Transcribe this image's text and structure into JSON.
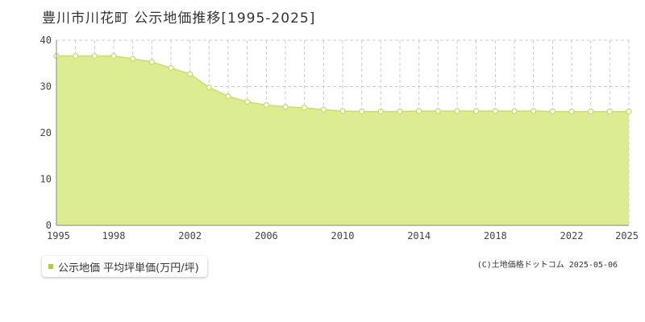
{
  "chart_data": {
    "type": "area",
    "title": "豊川市川花町 公示地価推移[1995-2025]",
    "xlabel": "",
    "ylabel": "",
    "x": [
      1995,
      1996,
      1997,
      1998,
      1999,
      2000,
      2001,
      2002,
      2003,
      2004,
      2005,
      2006,
      2007,
      2008,
      2009,
      2010,
      2011,
      2012,
      2013,
      2014,
      2015,
      2016,
      2017,
      2018,
      2019,
      2020,
      2021,
      2022,
      2023,
      2024,
      2025
    ],
    "series": [
      {
        "name": "公示地価 平均坪単価(万円/坪)",
        "values": [
          36.6,
          36.6,
          36.6,
          36.6,
          36.0,
          35.3,
          34.0,
          32.7,
          29.8,
          27.9,
          26.7,
          26.0,
          25.6,
          25.4,
          25.0,
          24.7,
          24.6,
          24.6,
          24.6,
          24.7,
          24.7,
          24.7,
          24.7,
          24.7,
          24.7,
          24.7,
          24.6,
          24.6,
          24.6,
          24.6,
          24.6
        ]
      }
    ],
    "xlim": [
      1995,
      2025
    ],
    "ylim": [
      0,
      40
    ],
    "xticks": [
      "1995",
      "1998",
      "2002",
      "2006",
      "2010",
      "2014",
      "2018",
      "2022",
      "2025"
    ],
    "yticks": [
      "0",
      "10",
      "20",
      "30",
      "40"
    ],
    "grid": true,
    "legend_position": "bottom-left"
  },
  "copyright": "(C)土地価格ドットコム 2025-05-06",
  "colors": {
    "area_fill": "#dcec93",
    "line": "#c5e065",
    "marker_fill": "#ffffff",
    "marker_stroke": "#c5e065",
    "legend_swatch": "#a9d33a",
    "grid": "#cccccc",
    "axis": "#888888"
  }
}
